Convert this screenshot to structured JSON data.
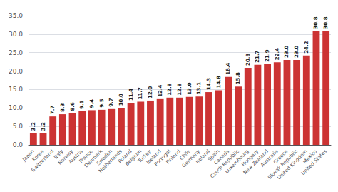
{
  "chart_data": {
    "type": "bar",
    "categories": [
      "Japan",
      "Korea",
      "Switzerland",
      "Italy",
      "Norway",
      "Austria",
      "France",
      "Denmark",
      "Sweden",
      "Netherlands",
      "Poland",
      "Belgium",
      "Turkey",
      "Iceland",
      "Portugal",
      "Finland",
      "Chile",
      "Germany",
      "Ireland",
      "Spain",
      "Canada",
      "Czech Republic",
      "Luxembourg",
      "Hungary",
      "New Zealand",
      "Australia",
      "Greece",
      "Slovak Republic",
      "United Kingdom",
      "Mexico",
      "United States"
    ],
    "values": [
      3.2,
      3.2,
      7.7,
      8.3,
      8.6,
      9.1,
      9.4,
      9.5,
      9.7,
      10.0,
      11.4,
      11.7,
      12.0,
      12.4,
      12.8,
      12.8,
      13.0,
      13.1,
      14.3,
      14.8,
      18.4,
      15.8,
      20.9,
      21.7,
      21.9,
      22.4,
      23.0,
      23.0,
      24.2,
      30.8,
      30.8
    ],
    "value_labels": [
      "3.2",
      "3.2",
      "7.7",
      "8.3",
      "8.6",
      "9.1",
      "9.4",
      "9.5",
      "9.7",
      "10.0",
      "11.4",
      "11.7",
      "12.0",
      "12.4",
      "12.8",
      "12.8",
      "13.0",
      "13.1",
      "14.3",
      "14.8",
      "18.4",
      "15.8",
      "20.9",
      "21.7",
      "21.9",
      "22.4",
      "23.0",
      "23.0",
      "24.2",
      "30.8",
      "30.8"
    ],
    "color": "#cc3333",
    "data_labels": true,
    "ylim": [
      0,
      35
    ],
    "yticks": [
      {
        "value": 0,
        "label": "0.0"
      },
      {
        "value": 5,
        "label": "5.0"
      },
      {
        "value": 10,
        "label": "10.0"
      },
      {
        "value": 15,
        "label": "15.0"
      },
      {
        "value": 20,
        "label": "20.0"
      },
      {
        "value": 25,
        "label": "25.0"
      },
      {
        "value": 30,
        "label": "30.0"
      },
      {
        "value": 35,
        "label": "35.0"
      }
    ],
    "grid": true
  }
}
